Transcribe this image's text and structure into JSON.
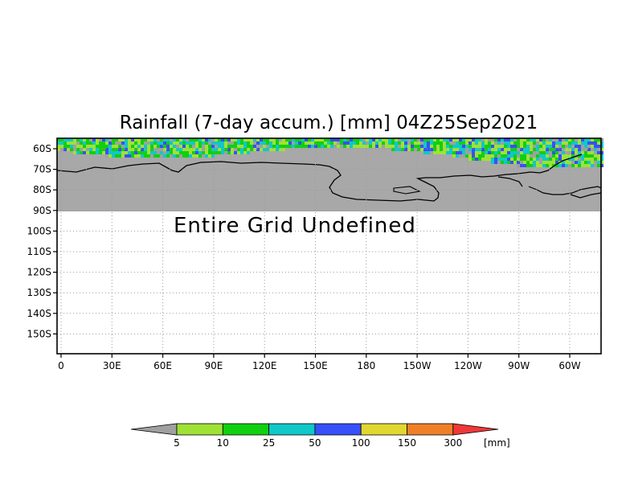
{
  "title": "Rainfall (7-day accum.) [mm] 04Z25Sep2021",
  "notice": "Entire Grid Undefined",
  "y_ticks": [
    "60S",
    "70S",
    "80S",
    "90S",
    "100S",
    "110S",
    "120S",
    "130S",
    "140S",
    "150S"
  ],
  "x_ticks": [
    "0",
    "30E",
    "60E",
    "90E",
    "120E",
    "150E",
    "180",
    "150W",
    "120W",
    "90W",
    "60W"
  ],
  "colorbar": {
    "unit": "[mm]",
    "levels": [
      "5",
      "10",
      "25",
      "50",
      "100",
      "150",
      "300"
    ],
    "colors": {
      "below": "#a0a0a0",
      "b1": "#9fe236",
      "b2": "#10d010",
      "b3": "#10c8c8",
      "b4": "#3850f8",
      "b5": "#e0d830",
      "b6": "#f08028",
      "above": "#f03838"
    }
  },
  "map_colors": {
    "undefined": "#a8a8a8",
    "coast": "#000000",
    "grid": "#9a9a9a"
  }
}
